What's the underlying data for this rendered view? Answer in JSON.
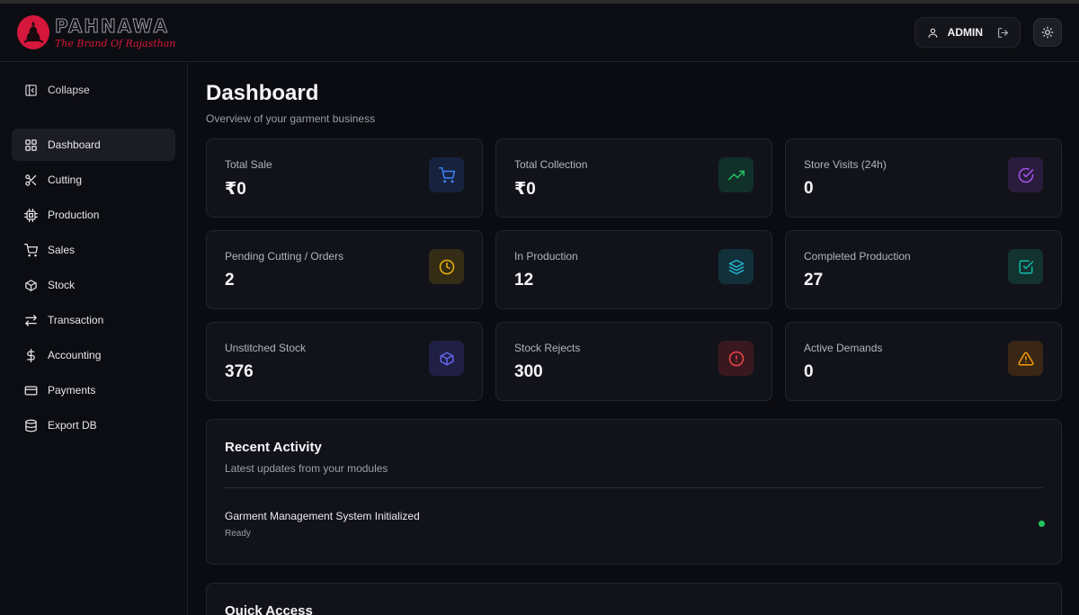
{
  "brand": {
    "name": "PAHNAWA",
    "tagline": "The Brand Of Rajasthan",
    "color": "#d4173b"
  },
  "header": {
    "user_label": "ADMIN"
  },
  "sidebar": {
    "collapse_label": "Collapse",
    "items": [
      {
        "label": "Dashboard",
        "icon": "grid-icon",
        "active": true
      },
      {
        "label": "Cutting",
        "icon": "scissors-icon"
      },
      {
        "label": "Production",
        "icon": "cpu-icon"
      },
      {
        "label": "Sales",
        "icon": "cart-icon"
      },
      {
        "label": "Stock",
        "icon": "box-icon"
      },
      {
        "label": "Transaction",
        "icon": "swap-icon"
      },
      {
        "label": "Accounting",
        "icon": "dollar-icon"
      },
      {
        "label": "Payments",
        "icon": "credit-card-icon"
      },
      {
        "label": "Export DB",
        "icon": "database-icon"
      }
    ]
  },
  "main": {
    "title": "Dashboard",
    "subtitle": "Overview of your garment business",
    "cards": [
      {
        "label": "Total Sale",
        "value": "₹0",
        "icon": "cart-icon",
        "color": "#3b82f6"
      },
      {
        "label": "Total Collection",
        "value": "₹0",
        "icon": "trending-up-icon",
        "color": "#22c55e"
      },
      {
        "label": "Store Visits (24h)",
        "value": "0",
        "icon": "check-circle-icon",
        "color": "#a855f7"
      },
      {
        "label": "Pending Cutting / Orders",
        "value": "2",
        "icon": "clock-icon",
        "color": "#eab308"
      },
      {
        "label": "In Production",
        "value": "12",
        "icon": "layers-icon",
        "color": "#22b8d4"
      },
      {
        "label": "Completed Production",
        "value": "27",
        "icon": "check-square-icon",
        "color": "#14b8a6"
      },
      {
        "label": "Unstitched Stock",
        "value": "376",
        "icon": "box-icon",
        "color": "#6366f1"
      },
      {
        "label": "Stock Rejects",
        "value": "300",
        "icon": "alert-circle-icon",
        "color": "#ef4444"
      },
      {
        "label": "Active Demands",
        "value": "0",
        "icon": "warning-icon",
        "color": "#f59e0b"
      }
    ],
    "recent_activity": {
      "title": "Recent Activity",
      "subtitle": "Latest updates from your modules",
      "items": [
        {
          "title": "Garment Management System Initialized",
          "status": "Ready",
          "status_color": "#22c55e"
        }
      ]
    },
    "quick_access": {
      "title": "Quick Access"
    }
  }
}
